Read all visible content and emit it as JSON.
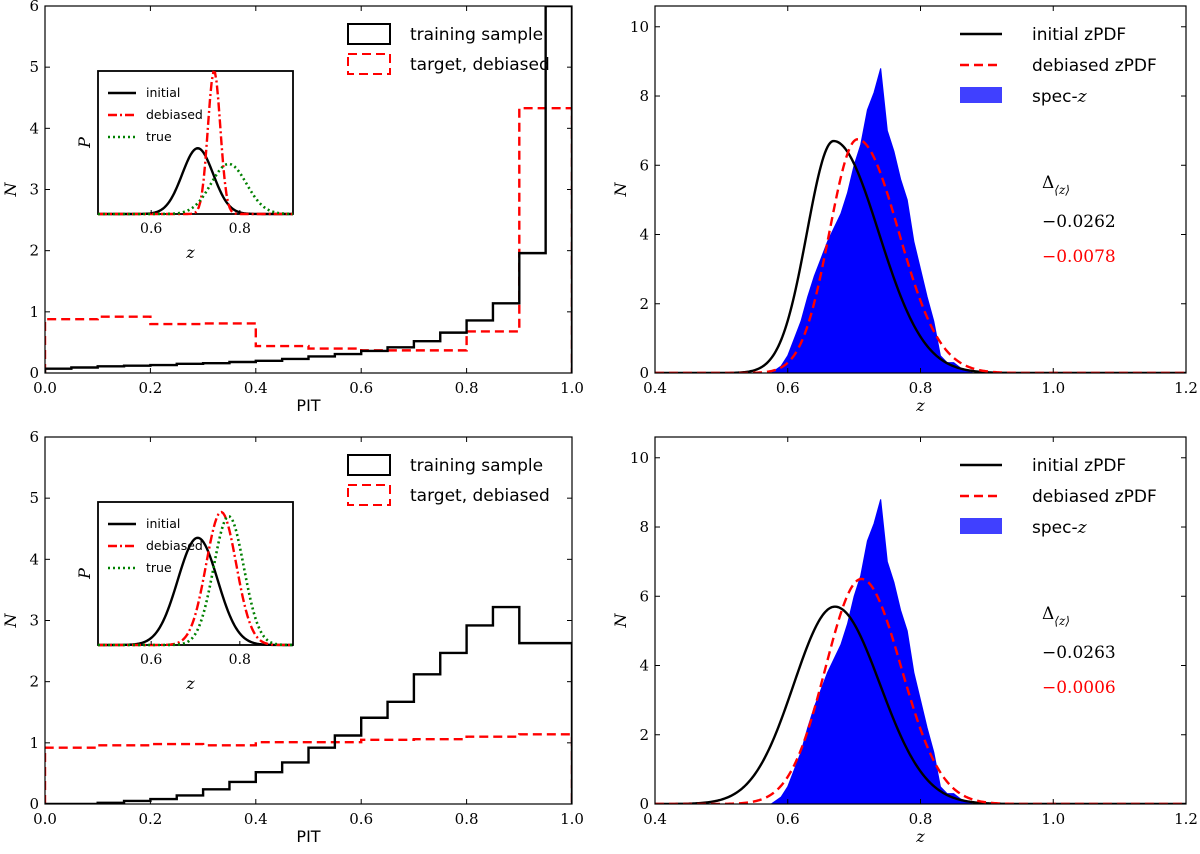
{
  "chart_data": [
    {
      "type": "line",
      "panel": "top-left",
      "xlabel": "PIT",
      "ylabel": "N",
      "xlim": [
        0,
        1
      ],
      "ylim": [
        0,
        6
      ],
      "xticks": [
        "0.0",
        "0.2",
        "0.4",
        "0.6",
        "0.8",
        "1.0"
      ],
      "yticks": [
        "0",
        "1",
        "2",
        "3",
        "4",
        "5",
        "6"
      ],
      "legend_position": "top-right",
      "series": [
        {
          "name": "training sample",
          "style": "step",
          "color": "#000000",
          "edges": [
            0,
            0.05,
            0.1,
            0.15,
            0.2,
            0.25,
            0.3,
            0.35,
            0.4,
            0.45,
            0.5,
            0.55,
            0.6,
            0.65,
            0.7,
            0.75,
            0.8,
            0.85,
            0.9,
            0.95,
            1.0
          ],
          "values": [
            0.07,
            0.09,
            0.11,
            0.12,
            0.13,
            0.15,
            0.16,
            0.18,
            0.2,
            0.23,
            0.27,
            0.31,
            0.36,
            0.42,
            0.52,
            0.66,
            0.86,
            1.14,
            1.96,
            6.0
          ]
        },
        {
          "name": "target, debiased",
          "style": "step",
          "color": "#ff0000",
          "edges": [
            0,
            0.1,
            0.2,
            0.3,
            0.4,
            0.5,
            0.6,
            0.7,
            0.8,
            0.9,
            1.0
          ],
          "values": [
            0.88,
            0.92,
            0.8,
            0.81,
            0.44,
            0.4,
            0.37,
            0.37,
            0.68,
            4.33
          ]
        }
      ],
      "inset": {
        "xlabel": "z",
        "ylabel": "P",
        "xlim": [
          0.48,
          0.92
        ],
        "xticks": [
          "0.6",
          "0.8"
        ],
        "series": [
          {
            "name": "initial",
            "color": "#000000",
            "mu": 0.705,
            "sigma": 0.035,
            "peak": 0.46
          },
          {
            "name": "debiased",
            "color": "#ff0000",
            "mu": 0.742,
            "sigma": 0.014,
            "peak": 1.0
          },
          {
            "name": "true",
            "color": "#008000",
            "mu": 0.775,
            "sigma": 0.04,
            "peak": 0.35
          }
        ]
      }
    },
    {
      "type": "area",
      "panel": "top-right",
      "xlabel": "z",
      "ylabel": "N",
      "xlim": [
        0.4,
        1.2
      ],
      "ylim": [
        0,
        10.6
      ],
      "xticks": [
        "0.4",
        "0.6",
        "0.8",
        "1.0",
        "1.2"
      ],
      "yticks": [
        "0",
        "2",
        "4",
        "6",
        "8",
        "10"
      ],
      "legend_position": "top-right",
      "series": [
        {
          "name": "initial zPDF",
          "color": "#000000",
          "style": "solid",
          "mu": 0.669,
          "sigma_left": 0.04,
          "sigma_right": 0.068,
          "peak": 6.7
        },
        {
          "name": "debiased zPDF",
          "color": "#ff0000",
          "style": "dashed",
          "mu": 0.705,
          "sigma_left": 0.042,
          "sigma_right": 0.062,
          "peak": 6.75
        },
        {
          "name": "spec-z",
          "color": "#0000ff",
          "style": "filled",
          "x": [
            0.575,
            0.59,
            0.6,
            0.61,
            0.62,
            0.63,
            0.64,
            0.65,
            0.66,
            0.67,
            0.68,
            0.69,
            0.7,
            0.71,
            0.72,
            0.73,
            0.74,
            0.75,
            0.76,
            0.77,
            0.78,
            0.79,
            0.8,
            0.81,
            0.82,
            0.83,
            0.84,
            0.85,
            0.86,
            0.87,
            0.88
          ],
          "y": [
            0,
            0.2,
            0.5,
            1.0,
            1.5,
            2.2,
            2.8,
            3.3,
            3.8,
            4.2,
            4.6,
            5.2,
            6.0,
            6.6,
            7.6,
            8.1,
            8.8,
            7.0,
            6.4,
            5.6,
            5.0,
            3.8,
            3.0,
            2.2,
            1.5,
            0.5,
            0.3,
            0.3,
            0.15,
            0.05,
            0
          ]
        }
      ],
      "annotations": {
        "label": "Δ⟨z⟩",
        "initial": "−0.0262",
        "debiased": "−0.0078"
      }
    },
    {
      "type": "line",
      "panel": "bottom-left",
      "xlabel": "PIT",
      "ylabel": "N",
      "xlim": [
        0,
        1
      ],
      "ylim": [
        0,
        6
      ],
      "xticks": [
        "0.0",
        "0.2",
        "0.4",
        "0.6",
        "0.8",
        "1.0"
      ],
      "yticks": [
        "0",
        "1",
        "2",
        "3",
        "4",
        "5",
        "6"
      ],
      "legend_position": "top-right",
      "series": [
        {
          "name": "training sample",
          "style": "step",
          "color": "#000000",
          "edges": [
            0,
            0.05,
            0.1,
            0.15,
            0.2,
            0.25,
            0.3,
            0.35,
            0.4,
            0.45,
            0.5,
            0.55,
            0.6,
            0.65,
            0.7,
            0.75,
            0.8,
            0.85,
            0.9,
            0.95,
            1.0
          ],
          "values": [
            0.0,
            0.0,
            0.02,
            0.05,
            0.08,
            0.14,
            0.24,
            0.36,
            0.52,
            0.68,
            0.92,
            1.12,
            1.41,
            1.67,
            2.12,
            2.47,
            2.92,
            3.22,
            2.63,
            2.63
          ]
        },
        {
          "name": "target, debiased",
          "style": "step",
          "color": "#ff0000",
          "edges": [
            0,
            0.1,
            0.2,
            0.3,
            0.4,
            0.5,
            0.6,
            0.7,
            0.8,
            0.9,
            1.0
          ],
          "values": [
            0.92,
            0.96,
            0.98,
            0.96,
            1.01,
            1.01,
            1.05,
            1.06,
            1.1,
            1.14
          ]
        }
      ],
      "inset": {
        "xlabel": "z",
        "ylabel": "P",
        "xlim": [
          0.48,
          0.92
        ],
        "xticks": [
          "0.6",
          "0.8"
        ],
        "series": [
          {
            "name": "initial",
            "color": "#000000",
            "mu": 0.705,
            "sigma": 0.045,
            "peak": 0.75
          },
          {
            "name": "debiased",
            "color": "#ff0000",
            "mu": 0.758,
            "sigma": 0.034,
            "peak": 0.93
          },
          {
            "name": "true",
            "color": "#008000",
            "mu": 0.775,
            "sigma": 0.034,
            "peak": 0.9
          }
        ]
      }
    },
    {
      "type": "area",
      "panel": "bottom-right",
      "xlabel": "z",
      "ylabel": "N",
      "xlim": [
        0.4,
        1.2
      ],
      "ylim": [
        0,
        10.6
      ],
      "xticks": [
        "0.4",
        "0.6",
        "0.8",
        "1.0",
        "1.2"
      ],
      "yticks": [
        "0",
        "2",
        "4",
        "6",
        "8",
        "10"
      ],
      "legend_position": "top-right",
      "series": [
        {
          "name": "initial zPDF",
          "color": "#000000",
          "style": "solid",
          "mu": 0.671,
          "sigma_left": 0.062,
          "sigma_right": 0.068,
          "peak": 5.7
        },
        {
          "name": "debiased zPDF",
          "color": "#ff0000",
          "style": "dashed",
          "mu": 0.711,
          "sigma_left": 0.054,
          "sigma_right": 0.06,
          "peak": 6.5
        },
        {
          "name": "spec-z",
          "color": "#0000ff",
          "style": "filled",
          "x": [
            0.575,
            0.59,
            0.6,
            0.61,
            0.62,
            0.63,
            0.64,
            0.65,
            0.66,
            0.67,
            0.68,
            0.69,
            0.7,
            0.71,
            0.72,
            0.73,
            0.74,
            0.75,
            0.76,
            0.77,
            0.78,
            0.79,
            0.8,
            0.81,
            0.82,
            0.83,
            0.84,
            0.85,
            0.86,
            0.87,
            0.88
          ],
          "y": [
            0,
            0.2,
            0.5,
            1.0,
            1.5,
            2.2,
            2.8,
            3.3,
            3.8,
            4.2,
            4.6,
            5.2,
            6.0,
            6.6,
            7.6,
            8.1,
            8.8,
            7.0,
            6.4,
            5.6,
            5.0,
            3.8,
            3.0,
            2.2,
            1.5,
            0.5,
            0.3,
            0.3,
            0.15,
            0.05,
            0
          ]
        }
      ],
      "annotations": {
        "label": "Δ⟨z⟩",
        "initial": "−0.0263",
        "debiased": "−0.0006"
      }
    }
  ]
}
